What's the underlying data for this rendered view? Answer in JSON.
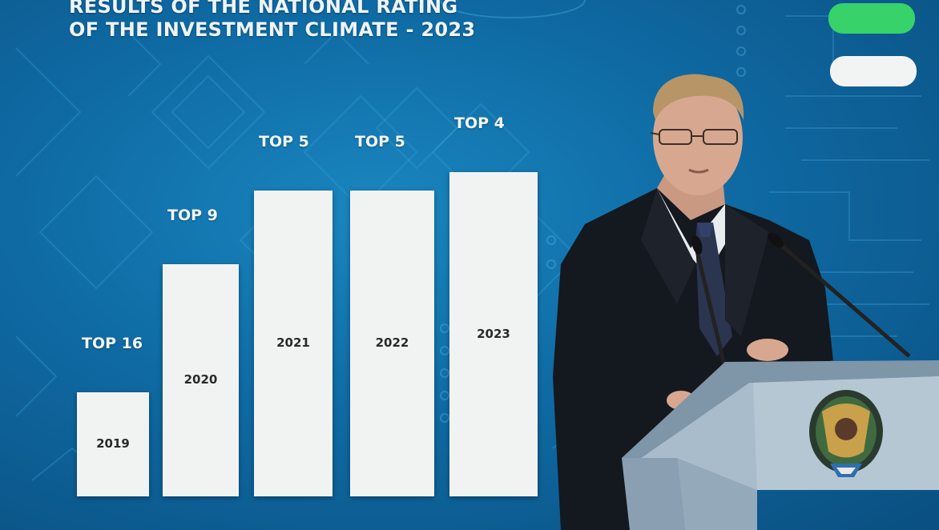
{
  "slide": {
    "title_line1": "RESULTS OF THE NATIONAL RATING",
    "title_line2": "OF THE INVESTMENT CLIMATE - 2023"
  },
  "chart_data": {
    "type": "bar",
    "categories": [
      "2019",
      "2020",
      "2021",
      "2022",
      "2023"
    ],
    "labels": [
      "TOP 16",
      "TOP 9",
      "TOP 5",
      "TOP 5",
      "TOP 4"
    ],
    "values": [
      16,
      9,
      5,
      5,
      4
    ],
    "title": "",
    "xlabel": "",
    "ylabel": ""
  },
  "colors": {
    "screen_blue": "#0f6aa3",
    "bar_white": "#f1f3f3",
    "pill_green": "#37d36a",
    "pill_white": "#f2f4f4",
    "podium": "#9fb4c6"
  }
}
